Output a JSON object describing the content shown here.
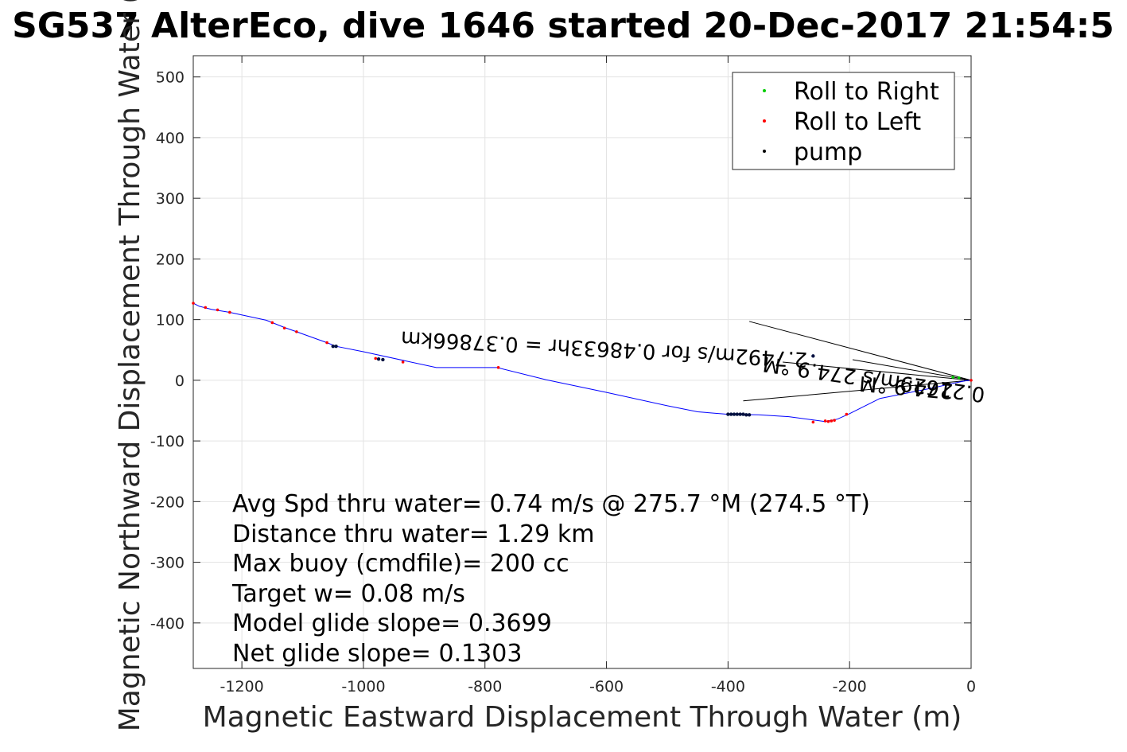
{
  "chart_data": {
    "type": "line",
    "title": "SG537 AlterEco, dive 1646 started 20-Dec-2017 21:54:5",
    "xlabel": "Magnetic Eastward Displacement Through Water (m)",
    "ylabel": "Magnetic Northward Displacement Through Water (",
    "xlim": [
      -1280,
      0
    ],
    "ylim": [
      -475,
      535
    ],
    "xticks": [
      -1200,
      -1000,
      -800,
      -600,
      -400,
      -200,
      0
    ],
    "yticks": [
      500,
      400,
      300,
      200,
      100,
      0,
      -100,
      -200,
      -300,
      -400
    ],
    "grid": true,
    "legend_position": "top-right",
    "legend": [
      {
        "label": "Roll to Right",
        "color": "#00cc00"
      },
      {
        "label": "Roll to Left",
        "color": "#ff0000"
      },
      {
        "label": "pump",
        "color": "#000000"
      }
    ],
    "track": {
      "color": "#0000ff",
      "x": [
        0,
        -10,
        -30,
        -60,
        -100,
        -150,
        -200,
        -220,
        -240,
        -300,
        -350,
        -400,
        -450,
        -500,
        -600,
        -700,
        -780,
        -880,
        -1000,
        -1045,
        -1060,
        -1110,
        -1130,
        -1160,
        -1220,
        -1250,
        -1270,
        -1280
      ],
      "y": [
        0,
        -1,
        -5,
        -12,
        -20,
        -30,
        -55,
        -64,
        -68,
        -60,
        -57,
        -56,
        -52,
        -42,
        -20,
        1,
        21,
        21,
        47,
        56,
        62,
        80,
        87,
        99,
        112,
        117,
        122,
        127
      ]
    },
    "roll_left_points": {
      "x": [
        0,
        -225,
        -230,
        -235,
        -240,
        -205,
        -260,
        -935,
        -980,
        -1060,
        -1110,
        -1130,
        -1150,
        -1220,
        -1240,
        -1260,
        -1280,
        -778
      ],
      "y": [
        0,
        -66,
        -67,
        -68,
        -67,
        -56,
        -69,
        30,
        36,
        62,
        80,
        86,
        95,
        112,
        116,
        120,
        127,
        21
      ]
    },
    "roll_right_points": {
      "x": [
        -20,
        -30
      ],
      "y": [
        4,
        5
      ]
    },
    "pump_points": {
      "x": [
        -400,
        -395,
        -390,
        -385,
        -380,
        -375,
        -370,
        -365,
        -1045,
        -1050,
        -975,
        -968,
        -260
      ],
      "y": [
        -56,
        -56,
        -56,
        -56,
        -56,
        -56,
        -57,
        -57,
        56,
        56,
        35,
        34,
        40
      ]
    },
    "current_lines": [
      {
        "x": [
          0,
          -365
        ],
        "y": [
          0,
          97
        ]
      },
      {
        "x": [
          0,
          -375
        ],
        "y": [
          0,
          -34
        ]
      },
      {
        "x": [
          0,
          -195
        ],
        "y": [
          0,
          34
        ]
      },
      {
        "x": [
          0,
          -310
        ],
        "y": [
          0,
          30
        ]
      }
    ],
    "flipped_annotations": [
      "2.7492m/s for 0.48633hr = 0.37866km",
      "0.21629m/s 274.9 °M",
      "274.9 °M"
    ],
    "stats_text": [
      "Avg Spd thru water=  0.74 m/s @ 275.7 °M (274.5 °T)",
      "Distance thru water=  1.29 km",
      "Max buoy (cmdfile)= 200 cc",
      "Target w= 0.08 m/s",
      "Model glide slope= 0.3699",
      "Net glide slope= 0.1303"
    ]
  }
}
